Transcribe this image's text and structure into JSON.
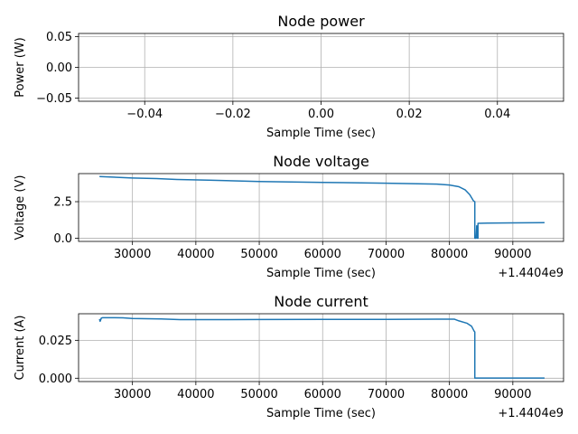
{
  "chart_data": [
    {
      "type": "line",
      "title": "Node power",
      "xlabel": "Sample Time (sec)",
      "ylabel": "Power (W)",
      "grid": true,
      "xlim": [
        -0.055,
        0.055
      ],
      "ylim": [
        -0.055,
        0.055
      ],
      "xticks": [
        -0.04,
        -0.02,
        0.0,
        0.02,
        0.04
      ],
      "xtick_labels": [
        "−0.04",
        "−0.02",
        "0.00",
        "0.02",
        "0.04"
      ],
      "yticks": [
        -0.05,
        0.0,
        0.05
      ],
      "ytick_labels": [
        "−0.05",
        "0.00",
        "0.05"
      ],
      "x_offset_label": "",
      "series": [
        {
          "color": "#1f77b4",
          "x": [],
          "y": []
        }
      ]
    },
    {
      "type": "line",
      "title": "Node voltage",
      "xlabel": "Sample Time (sec)",
      "ylabel": "Voltage (V)",
      "grid": true,
      "xlim": [
        21500,
        98000
      ],
      "ylim": [
        -0.22,
        4.42
      ],
      "xticks": [
        30000,
        40000,
        50000,
        60000,
        70000,
        80000,
        90000
      ],
      "xtick_labels": [
        "30000",
        "40000",
        "50000",
        "60000",
        "70000",
        "80000",
        "90000"
      ],
      "yticks": [
        0.0,
        2.5
      ],
      "ytick_labels": [
        "0.0",
        "2.5"
      ],
      "x_offset_label": "+1.4404e9",
      "series": [
        {
          "color": "#1f77b4",
          "x": [
            24800,
            30000,
            33800,
            37000,
            42000,
            50000,
            60000,
            70000,
            78000,
            80000,
            81500,
            82500,
            83200,
            83800,
            84000,
            84000,
            84200,
            84300,
            84400,
            84500,
            84500,
            86000,
            90000,
            95000
          ],
          "y": [
            4.22,
            4.12,
            4.08,
            4.02,
            3.97,
            3.88,
            3.82,
            3.76,
            3.7,
            3.64,
            3.52,
            3.3,
            2.98,
            2.55,
            2.5,
            0.0,
            0.0,
            0.85,
            0.0,
            0.0,
            1.02,
            1.03,
            1.05,
            1.06
          ]
        }
      ]
    },
    {
      "type": "line",
      "title": "Node current",
      "xlabel": "Sample Time (sec)",
      "ylabel": "Current (A)",
      "grid": true,
      "xlim": [
        21500,
        98000
      ],
      "ylim": [
        -0.0022,
        0.0425
      ],
      "xticks": [
        30000,
        40000,
        50000,
        60000,
        70000,
        80000,
        90000
      ],
      "xtick_labels": [
        "30000",
        "40000",
        "50000",
        "60000",
        "70000",
        "80000",
        "90000"
      ],
      "yticks": [
        0.0,
        0.025
      ],
      "ytick_labels": [
        "0.000",
        "0.025"
      ],
      "x_offset_label": "+1.4404e9",
      "series": [
        {
          "color": "#1f77b4",
          "x": [
            24800,
            24900,
            25100,
            25300,
            27000,
            28500,
            30000,
            34500,
            37500,
            50000,
            60000,
            70000,
            78000,
            80800,
            81500,
            82800,
            83500,
            83900,
            84000,
            84000,
            88000,
            95000
          ],
          "y": [
            0.039,
            0.0375,
            0.0397,
            0.0399,
            0.0399,
            0.0398,
            0.0394,
            0.0391,
            0.0386,
            0.0387,
            0.0388,
            0.0388,
            0.0389,
            0.0389,
            0.0378,
            0.0362,
            0.0342,
            0.031,
            0.0305,
            0.0001,
            0.0001,
            0.0001
          ]
        }
      ]
    }
  ]
}
